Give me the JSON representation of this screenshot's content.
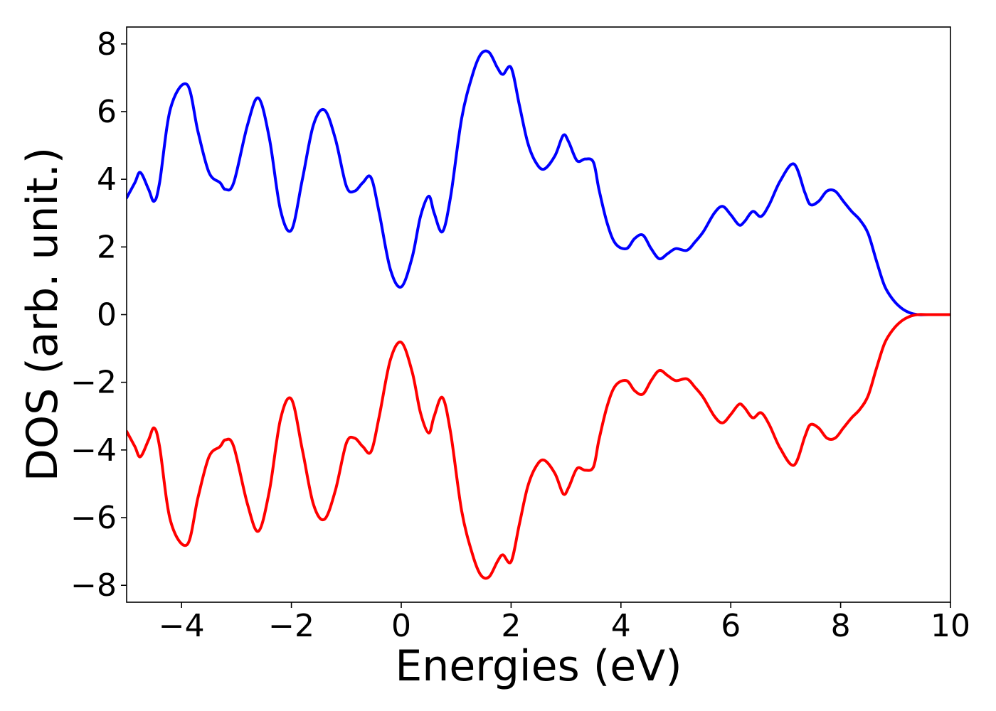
{
  "chart_data": {
    "type": "line",
    "title": "",
    "xlabel": "Energies (eV)",
    "ylabel": "DOS (arb. unit.)",
    "xlim": [
      -5,
      10
    ],
    "ylim": [
      -8.5,
      8.5
    ],
    "xticks": [
      -4,
      -2,
      0,
      2,
      4,
      6,
      8,
      10
    ],
    "xtick_labels": [
      "−4",
      "−2",
      "0",
      "2",
      "4",
      "6",
      "8",
      "10"
    ],
    "yticks": [
      8,
      6,
      4,
      2,
      0,
      -2,
      -4,
      -6,
      -8
    ],
    "ytick_labels": [
      "8",
      "6",
      "4",
      "2",
      "0",
      "−2",
      "−4",
      "−6",
      "−8"
    ],
    "grid": false,
    "legend": "none",
    "series": [
      {
        "color": "#0000ff",
        "x": [
          -5.0,
          -4.85,
          -4.75,
          -4.6,
          -4.5,
          -4.4,
          -4.2,
          -3.9,
          -3.7,
          -3.5,
          -3.3,
          -3.2,
          -3.05,
          -2.8,
          -2.6,
          -2.4,
          -2.2,
          -2.0,
          -1.8,
          -1.6,
          -1.4,
          -1.2,
          -1.0,
          -0.85,
          -0.7,
          -0.55,
          -0.4,
          -0.2,
          0.0,
          0.2,
          0.35,
          0.5,
          0.6,
          0.75,
          0.9,
          1.1,
          1.3,
          1.45,
          1.6,
          1.75,
          1.85,
          2.0,
          2.15,
          2.3,
          2.45,
          2.6,
          2.8,
          2.95,
          3.05,
          3.2,
          3.35,
          3.5,
          3.6,
          3.75,
          3.9,
          4.1,
          4.25,
          4.4,
          4.55,
          4.7,
          4.85,
          5.0,
          5.2,
          5.35,
          5.5,
          5.7,
          5.85,
          6.0,
          6.15,
          6.25,
          6.4,
          6.55,
          6.7,
          6.9,
          7.15,
          7.35,
          7.45,
          7.6,
          7.75,
          7.9,
          8.05,
          8.2,
          8.35,
          8.5,
          8.65,
          8.8,
          8.95,
          9.1,
          9.25,
          9.4,
          9.6,
          10.0
        ],
        "y": [
          3.45,
          3.9,
          4.2,
          3.7,
          3.35,
          3.9,
          6.1,
          6.8,
          5.4,
          4.2,
          3.9,
          3.7,
          3.9,
          5.6,
          6.4,
          5.2,
          3.1,
          2.5,
          4.0,
          5.6,
          6.05,
          5.2,
          3.8,
          3.65,
          3.9,
          4.05,
          3.0,
          1.35,
          0.82,
          1.7,
          2.9,
          3.5,
          3.0,
          2.45,
          3.5,
          5.8,
          7.1,
          7.7,
          7.75,
          7.3,
          7.1,
          7.3,
          6.2,
          5.1,
          4.5,
          4.3,
          4.7,
          5.3,
          5.1,
          4.55,
          4.6,
          4.5,
          3.7,
          2.7,
          2.1,
          1.95,
          2.25,
          2.35,
          1.95,
          1.65,
          1.8,
          1.95,
          1.9,
          2.15,
          2.45,
          3.0,
          3.2,
          2.95,
          2.65,
          2.75,
          3.05,
          2.9,
          3.25,
          3.95,
          4.45,
          3.6,
          3.25,
          3.35,
          3.65,
          3.65,
          3.35,
          3.05,
          2.8,
          2.4,
          1.6,
          0.85,
          0.45,
          0.2,
          0.06,
          0.0,
          0.0,
          0.0
        ]
      },
      {
        "color": "#ff0000",
        "x": [
          -5.0,
          -4.85,
          -4.75,
          -4.6,
          -4.5,
          -4.4,
          -4.2,
          -3.9,
          -3.7,
          -3.5,
          -3.3,
          -3.2,
          -3.05,
          -2.8,
          -2.6,
          -2.4,
          -2.2,
          -2.0,
          -1.8,
          -1.6,
          -1.4,
          -1.2,
          -1.0,
          -0.85,
          -0.7,
          -0.55,
          -0.4,
          -0.2,
          0.0,
          0.2,
          0.35,
          0.5,
          0.6,
          0.75,
          0.9,
          1.1,
          1.3,
          1.45,
          1.6,
          1.75,
          1.85,
          2.0,
          2.15,
          2.3,
          2.45,
          2.6,
          2.8,
          2.95,
          3.05,
          3.2,
          3.35,
          3.5,
          3.6,
          3.75,
          3.9,
          4.1,
          4.25,
          4.4,
          4.55,
          4.7,
          4.85,
          5.0,
          5.2,
          5.35,
          5.5,
          5.7,
          5.85,
          6.0,
          6.15,
          6.25,
          6.4,
          6.55,
          6.7,
          6.9,
          7.15,
          7.35,
          7.45,
          7.6,
          7.75,
          7.9,
          8.05,
          8.2,
          8.35,
          8.5,
          8.65,
          8.8,
          8.95,
          9.1,
          9.25,
          9.4,
          9.6,
          10.0
        ],
        "y": [
          -3.45,
          -3.9,
          -4.2,
          -3.7,
          -3.35,
          -3.9,
          -6.1,
          -6.8,
          -5.4,
          -4.2,
          -3.9,
          -3.7,
          -3.9,
          -5.6,
          -6.4,
          -5.2,
          -3.1,
          -2.5,
          -4.0,
          -5.6,
          -6.05,
          -5.2,
          -3.8,
          -3.65,
          -3.9,
          -4.05,
          -3.0,
          -1.35,
          -0.82,
          -1.7,
          -2.9,
          -3.5,
          -3.0,
          -2.45,
          -3.5,
          -5.8,
          -7.1,
          -7.7,
          -7.75,
          -7.3,
          -7.1,
          -7.3,
          -6.2,
          -5.1,
          -4.5,
          -4.3,
          -4.7,
          -5.3,
          -5.1,
          -4.55,
          -4.6,
          -4.5,
          -3.7,
          -2.7,
          -2.1,
          -1.95,
          -2.25,
          -2.35,
          -1.95,
          -1.65,
          -1.8,
          -1.95,
          -1.9,
          -2.15,
          -2.45,
          -3.0,
          -3.2,
          -2.95,
          -2.65,
          -2.75,
          -3.05,
          -2.9,
          -3.25,
          -3.95,
          -4.45,
          -3.6,
          -3.25,
          -3.35,
          -3.65,
          -3.65,
          -3.35,
          -3.05,
          -2.8,
          -2.4,
          -1.6,
          -0.85,
          -0.45,
          -0.2,
          -0.06,
          0.0,
          0.0,
          0.0
        ]
      }
    ]
  }
}
